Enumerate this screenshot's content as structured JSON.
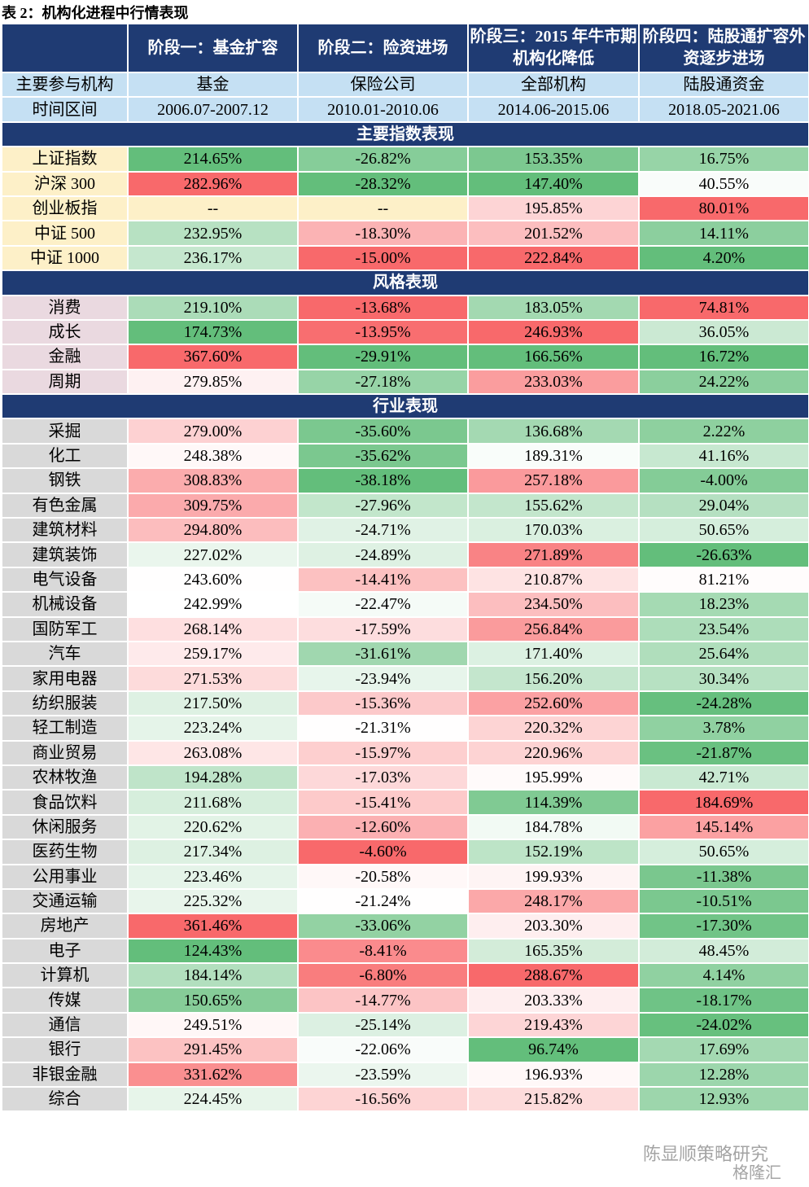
{
  "title": "表 2：机构化进程中行情表现",
  "header": [
    "阶段一：基金扩容",
    "阶段二：险资进场",
    "阶段三：2015 年牛市期机构化降低",
    "阶段四：陆股通扩容外资逐步进场"
  ],
  "info_rows": [
    {
      "label": "主要参与机构",
      "cells": [
        "基金",
        "保险公司",
        "全部机构",
        "陆股通资金"
      ]
    },
    {
      "label": "时间区间",
      "cells": [
        "2006.07-2007.12",
        "2010.01-2010.06",
        "2014.06-2015.06",
        "2018.05-2021.06"
      ]
    }
  ],
  "sections": [
    {
      "title": "主要指数表现",
      "rows": [
        {
          "label": "上证指数",
          "cells": [
            "214.65%",
            "-26.82%",
            "153.35%",
            "16.75%"
          ]
        },
        {
          "label": "沪深 300",
          "cells": [
            "282.96%",
            "-28.32%",
            "147.40%",
            "40.55%"
          ]
        },
        {
          "label": "创业板指",
          "cells": [
            "--",
            "--",
            "195.85%",
            "80.01%"
          ]
        },
        {
          "label": "中证 500",
          "cells": [
            "232.95%",
            "-18.30%",
            "201.52%",
            "14.11%"
          ]
        },
        {
          "label": "中证 1000",
          "cells": [
            "236.17%",
            "-15.00%",
            "222.84%",
            "4.20%"
          ]
        }
      ]
    },
    {
      "title": "风格表现",
      "rows": [
        {
          "label": "消费",
          "cells": [
            "219.10%",
            "-13.68%",
            "183.05%",
            "74.81%"
          ]
        },
        {
          "label": "成长",
          "cells": [
            "174.73%",
            "-13.95%",
            "246.93%",
            "36.05%"
          ]
        },
        {
          "label": "金融",
          "cells": [
            "367.60%",
            "-29.91%",
            "166.56%",
            "16.72%"
          ]
        },
        {
          "label": "周期",
          "cells": [
            "279.85%",
            "-27.18%",
            "233.03%",
            "24.22%"
          ]
        }
      ]
    },
    {
      "title": "行业表现",
      "rows": [
        {
          "label": "采掘",
          "cells": [
            "279.00%",
            "-35.60%",
            "136.68%",
            "2.22%"
          ]
        },
        {
          "label": "化工",
          "cells": [
            "248.38%",
            "-35.62%",
            "189.31%",
            "41.16%"
          ]
        },
        {
          "label": "钢铁",
          "cells": [
            "308.83%",
            "-38.18%",
            "257.18%",
            "-4.00%"
          ]
        },
        {
          "label": "有色金属",
          "cells": [
            "309.75%",
            "-27.96%",
            "155.62%",
            "29.04%"
          ]
        },
        {
          "label": "建筑材料",
          "cells": [
            "294.80%",
            "-24.71%",
            "170.03%",
            "50.65%"
          ]
        },
        {
          "label": "建筑装饰",
          "cells": [
            "227.02%",
            "-24.89%",
            "271.89%",
            "-26.63%"
          ]
        },
        {
          "label": "电气设备",
          "cells": [
            "243.60%",
            "-14.41%",
            "210.87%",
            "81.21%"
          ]
        },
        {
          "label": "机械设备",
          "cells": [
            "242.99%",
            "-22.47%",
            "234.50%",
            "18.23%"
          ]
        },
        {
          "label": "国防军工",
          "cells": [
            "268.14%",
            "-17.59%",
            "256.84%",
            "23.54%"
          ]
        },
        {
          "label": "汽车",
          "cells": [
            "259.17%",
            "-31.61%",
            "171.40%",
            "25.64%"
          ]
        },
        {
          "label": "家用电器",
          "cells": [
            "271.53%",
            "-23.94%",
            "156.20%",
            "30.34%"
          ]
        },
        {
          "label": "纺织服装",
          "cells": [
            "217.50%",
            "-15.36%",
            "252.60%",
            "-24.28%"
          ]
        },
        {
          "label": "轻工制造",
          "cells": [
            "223.24%",
            "-21.31%",
            "220.32%",
            "3.78%"
          ]
        },
        {
          "label": "商业贸易",
          "cells": [
            "263.08%",
            "-15.97%",
            "220.96%",
            "-21.87%"
          ]
        },
        {
          "label": "农林牧渔",
          "cells": [
            "194.28%",
            "-17.03%",
            "195.99%",
            "42.71%"
          ]
        },
        {
          "label": "食品饮料",
          "cells": [
            "211.68%",
            "-15.41%",
            "114.39%",
            "184.69%"
          ]
        },
        {
          "label": "休闲服务",
          "cells": [
            "220.62%",
            "-12.60%",
            "184.78%",
            "145.14%"
          ]
        },
        {
          "label": "医药生物",
          "cells": [
            "217.34%",
            "-4.60%",
            "152.19%",
            "50.65%"
          ]
        },
        {
          "label": "公用事业",
          "cells": [
            "223.46%",
            "-20.58%",
            "199.93%",
            "-11.38%"
          ]
        },
        {
          "label": "交通运输",
          "cells": [
            "225.32%",
            "-21.24%",
            "248.17%",
            "-10.51%"
          ]
        },
        {
          "label": "房地产",
          "cells": [
            "361.46%",
            "-33.06%",
            "203.30%",
            "-17.30%"
          ]
        },
        {
          "label": "电子",
          "cells": [
            "124.43%",
            "-8.41%",
            "165.35%",
            "48.45%"
          ]
        },
        {
          "label": "计算机",
          "cells": [
            "184.14%",
            "-6.80%",
            "288.67%",
            "4.14%"
          ]
        },
        {
          "label": "传媒",
          "cells": [
            "150.65%",
            "-14.77%",
            "203.33%",
            "-18.17%"
          ]
        },
        {
          "label": "通信",
          "cells": [
            "249.51%",
            "-25.14%",
            "219.43%",
            "-24.02%"
          ]
        },
        {
          "label": "银行",
          "cells": [
            "291.45%",
            "-22.06%",
            "96.74%",
            "17.69%"
          ]
        },
        {
          "label": "非银金融",
          "cells": [
            "331.62%",
            "-23.59%",
            "196.93%",
            "12.28%"
          ]
        },
        {
          "label": "综合",
          "cells": [
            "224.45%",
            "-16.56%",
            "215.82%",
            "12.93%"
          ]
        }
      ]
    }
  ],
  "watermark": [
    "陈显顺策略研究",
    "格隆汇"
  ]
}
